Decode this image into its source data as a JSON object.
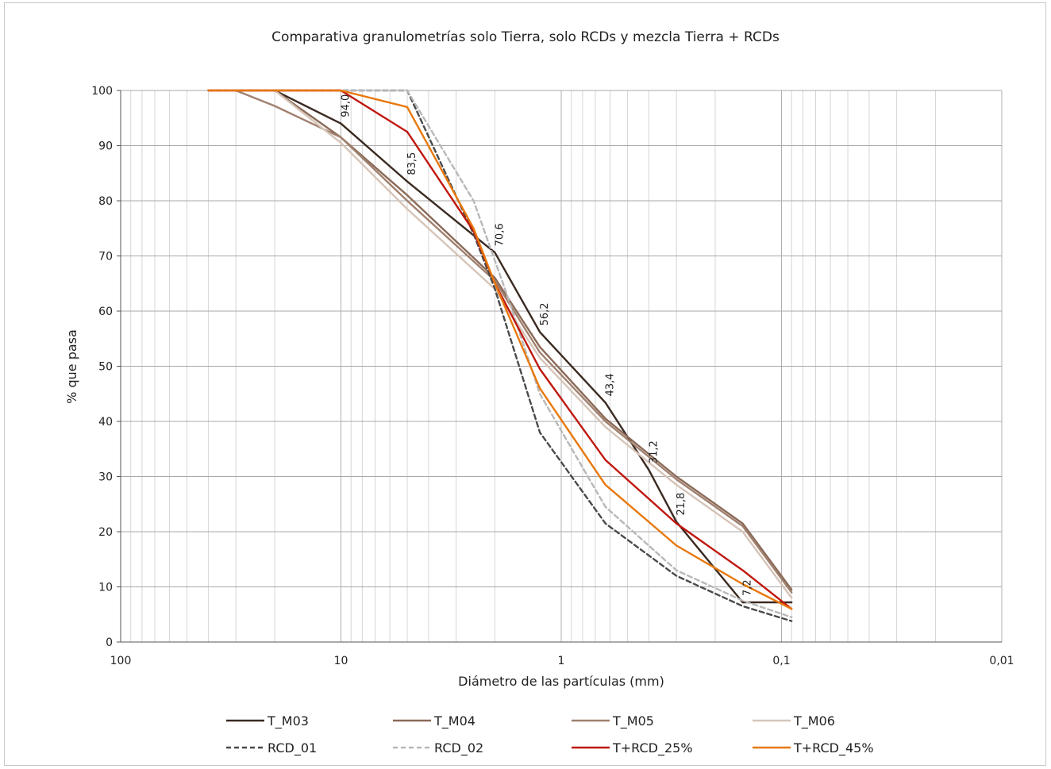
{
  "chart_data": {
    "type": "line",
    "title": "Comparativa granulometrías solo Tierra, solo RCDs y mezcla Tierra + RCDs",
    "xlabel": "Diámetro de las partículas (mm)",
    "ylabel": "% que pasa",
    "x_scale": "log",
    "x_reversed": true,
    "xlim": [
      100,
      0.01
    ],
    "ylim": [
      0,
      100
    ],
    "x_ticks": [
      100,
      10,
      1,
      0.1,
      0.01
    ],
    "x_tick_labels": [
      "100",
      "10",
      "1",
      "0,1",
      "0,01"
    ],
    "y_ticks": [
      0,
      10,
      20,
      30,
      40,
      50,
      60,
      70,
      80,
      90,
      100
    ],
    "grid": true,
    "legend_position": "bottom",
    "series": [
      {
        "name": "T_M03",
        "color": "#3b2a22",
        "dash": "solid",
        "x": [
          20,
          10,
          5,
          2,
          1.25,
          0.63,
          0.4,
          0.3,
          0.15,
          0.09
        ],
        "y": [
          100,
          94.0,
          83.5,
          70.6,
          56.2,
          43.4,
          31.2,
          21.8,
          7.2,
          7.2
        ],
        "labels": [
          "",
          "94,0",
          "83,5",
          "70,6",
          "56,2",
          "43,4",
          "31,2",
          "21,8",
          "7,2",
          ""
        ]
      },
      {
        "name": "T_M04",
        "color": "#8a6a58",
        "dash": "solid",
        "x": [
          20,
          10,
          5,
          2,
          1.25,
          0.63,
          0.3,
          0.15,
          0.09
        ],
        "y": [
          100,
          91.5,
          81,
          66,
          53.5,
          40.5,
          30,
          21.5,
          9.5
        ],
        "labels": []
      },
      {
        "name": "T_M05",
        "color": "#a0806e",
        "dash": "solid",
        "x": [
          30,
          20,
          10,
          5,
          2,
          1.25,
          0.63,
          0.3,
          0.15,
          0.09
        ],
        "y": [
          100,
          97.2,
          91.5,
          80,
          65.5,
          52.5,
          40,
          29.5,
          21,
          9
        ],
        "labels": []
      },
      {
        "name": "T_M06",
        "color": "#d6c4b8",
        "dash": "solid",
        "x": [
          20,
          10,
          5,
          2,
          1.25,
          0.63,
          0.3,
          0.15,
          0.09
        ],
        "y": [
          100,
          90.5,
          78.5,
          64,
          51.5,
          39,
          28.5,
          20,
          8
        ],
        "labels": []
      },
      {
        "name": "RCD_01",
        "color": "#4a4a4a",
        "dash": "dashed",
        "x": [
          40,
          10,
          5,
          2.5,
          2,
          1.25,
          0.63,
          0.3,
          0.15,
          0.09
        ],
        "y": [
          100,
          100,
          100,
          74,
          64,
          38,
          21.5,
          12,
          6.5,
          3.8
        ],
        "labels": []
      },
      {
        "name": "RCD_02",
        "color": "#b8b8b8",
        "dash": "dashed",
        "x": [
          40,
          10,
          5,
          2.5,
          1.8,
          1.25,
          0.63,
          0.3,
          0.15,
          0.09
        ],
        "y": [
          100,
          100,
          100,
          80,
          64,
          45,
          24.5,
          13,
          7.5,
          4.5
        ],
        "labels": []
      },
      {
        "name": "T+RCD_25%",
        "color": "#c0180f",
        "dash": "solid",
        "x": [
          40,
          10,
          5,
          2.5,
          2,
          1.25,
          0.63,
          0.3,
          0.15,
          0.09
        ],
        "y": [
          100,
          100,
          92.5,
          74.5,
          65,
          49.5,
          33,
          21.5,
          13,
          6
        ],
        "labels": []
      },
      {
        "name": "T+RCD_45%",
        "color": "#e8780c",
        "dash": "solid",
        "x": [
          40,
          10,
          5,
          2.5,
          2,
          1.25,
          0.63,
          0.3,
          0.15,
          0.09
        ],
        "y": [
          100,
          100,
          97,
          75,
          65,
          46,
          28.5,
          17.5,
          10.5,
          6
        ],
        "labels": []
      }
    ]
  }
}
